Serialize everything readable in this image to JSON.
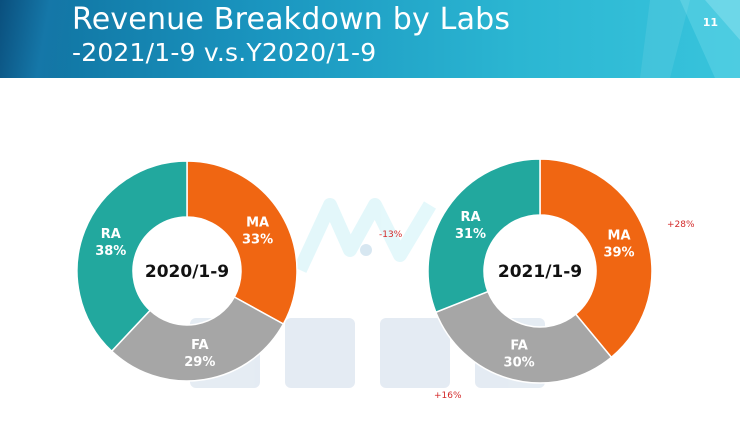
{
  "header": {
    "title_line1": "Revenue Breakdown by Labs",
    "title_line2": "-2021/1-9 v.s.Y2020/1-9",
    "page_number": "11"
  },
  "colors": {
    "MA": "#f06612",
    "FA": "#a6a6a6",
    "RA": "#22a89e",
    "change_text": "#d42a2a"
  },
  "changes": {
    "MA": "+28%",
    "FA": "+16%",
    "RA": "-13%"
  },
  "chart_data": [
    {
      "type": "pie",
      "donut": true,
      "title": "2020/1-9",
      "categories": [
        "MA",
        "FA",
        "RA"
      ],
      "values": [
        33,
        29,
        38
      ],
      "labels": [
        "33%",
        "29%",
        "38%"
      ]
    },
    {
      "type": "pie",
      "donut": true,
      "title": "2021/1-9",
      "categories": [
        "MA",
        "FA",
        "RA"
      ],
      "values": [
        39,
        30,
        31
      ],
      "labels": [
        "39%",
        "30%",
        "31%"
      ]
    }
  ]
}
